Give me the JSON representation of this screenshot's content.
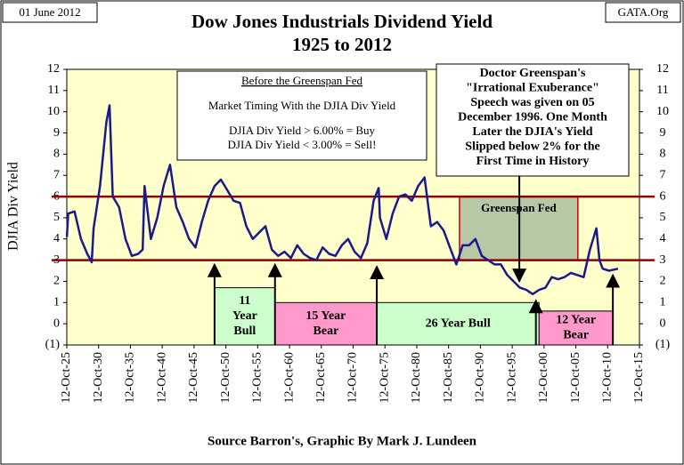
{
  "chart_data": {
    "type": "line",
    "title": "Dow Jones Industrials Dividend Yield",
    "subtitle": "1925 to 2012",
    "date": "01 June 2012",
    "source_tag": "GATA.Org",
    "y_label": "DJIA Div Yield",
    "footer": "Source Barron's, Graphic By Mark J. Lundeen",
    "xlim": [
      1925.78,
      2015.78
    ],
    "xticks": [
      {
        "value": 1925.78,
        "label": "12-Oct-25"
      },
      {
        "value": 1930.78,
        "label": "12-Oct-30"
      },
      {
        "value": 1935.78,
        "label": "12-Oct-35"
      },
      {
        "value": 1940.78,
        "label": "12-Oct-40"
      },
      {
        "value": 1945.78,
        "label": "12-Oct-45"
      },
      {
        "value": 1950.78,
        "label": "12-Oct-50"
      },
      {
        "value": 1955.78,
        "label": "12-Oct-55"
      },
      {
        "value": 1960.78,
        "label": "12-Oct-60"
      },
      {
        "value": 1965.78,
        "label": "12-Oct-65"
      },
      {
        "value": 1970.78,
        "label": "12-Oct-70"
      },
      {
        "value": 1975.78,
        "label": "12-Oct-75"
      },
      {
        "value": 1980.78,
        "label": "12-Oct-80"
      },
      {
        "value": 1985.78,
        "label": "12-Oct-85"
      },
      {
        "value": 1990.78,
        "label": "12-Oct-90"
      },
      {
        "value": 1995.78,
        "label": "12-Oct-95"
      },
      {
        "value": 2000.78,
        "label": "12-Oct-00"
      },
      {
        "value": 2005.78,
        "label": "12-Oct-05"
      },
      {
        "value": 2010.78,
        "label": "12-Oct-10"
      },
      {
        "value": 2015.78,
        "label": "12-Oct-15"
      }
    ],
    "ylim": [
      -1,
      12
    ],
    "yticks": [
      {
        "value": -1,
        "label": "(1)"
      },
      0,
      1,
      2,
      3,
      4,
      5,
      6,
      7,
      8,
      9,
      10,
      11,
      12
    ],
    "reference_lines": [
      6,
      3
    ],
    "reference_color": "#8b0000",
    "x": [
      1925.8,
      1926,
      1927,
      1928,
      1929,
      1929.7,
      1930,
      1931,
      1932,
      1932.5,
      1933,
      1934,
      1935,
      1936,
      1937,
      1937.7,
      1938,
      1939,
      1940,
      1941,
      1942,
      1943,
      1944,
      1945,
      1946,
      1947,
      1948,
      1949,
      1950,
      1951,
      1952,
      1953,
      1954,
      1955,
      1956,
      1957,
      1958,
      1959,
      1960,
      1961,
      1962,
      1963,
      1964,
      1965,
      1966,
      1967,
      1968,
      1969,
      1970,
      1971,
      1972,
      1973,
      1974,
      1974.8,
      1975,
      1976,
      1977,
      1978,
      1979,
      1980,
      1981,
      1982,
      1983,
      1984,
      1985,
      1986,
      1987,
      1988,
      1989,
      1990,
      1991,
      1992,
      1993,
      1994,
      1995,
      1996,
      1997,
      1998,
      1999,
      2000,
      2001,
      2002,
      2003,
      2004,
      2005,
      2006,
      2007,
      2008,
      2009,
      2009.5,
      2010,
      2011,
      2012.4
    ],
    "series": [
      {
        "name": "DJIA Div Yield",
        "color": "#1a1a8c",
        "values": [
          4.1,
          5.2,
          5.3,
          4.0,
          3.3,
          2.9,
          4.5,
          6.5,
          9.5,
          10.3,
          6.0,
          5.5,
          4.0,
          3.2,
          3.3,
          3.5,
          6.5,
          4.0,
          5.0,
          6.5,
          7.5,
          5.5,
          4.8,
          4.0,
          3.6,
          4.8,
          5.8,
          6.5,
          6.8,
          6.3,
          5.8,
          5.7,
          4.6,
          4.0,
          4.3,
          4.6,
          3.5,
          3.2,
          3.4,
          3.1,
          3.7,
          3.3,
          3.1,
          3.0,
          3.6,
          3.3,
          3.2,
          3.7,
          4.0,
          3.4,
          3.1,
          3.8,
          5.8,
          6.4,
          5.0,
          4.0,
          5.2,
          6.0,
          6.1,
          5.8,
          6.5,
          6.9,
          4.6,
          4.8,
          4.4,
          3.6,
          2.8,
          3.7,
          3.7,
          4.0,
          3.2,
          3.0,
          2.8,
          2.8,
          2.3,
          2.0,
          1.7,
          1.6,
          1.4,
          1.6,
          1.7,
          2.2,
          2.1,
          2.2,
          2.4,
          2.3,
          2.2,
          3.5,
          4.5,
          3.0,
          2.6,
          2.5,
          2.6
        ]
      }
    ],
    "note_left": [
      "Before the Greenspan Fed",
      "Market Timing With the DJIA Div Yield",
      "DJIA Div Yield > 6.00% = Buy",
      "DJIA Div Yield < 3.00% = Sell!"
    ],
    "note_right": [
      "Doctor Greenspan's",
      "\"Irrational Exuberance\"",
      "Speech was given on 05",
      "December 1996.  One Month",
      "Later the DJIA's Yield",
      "Slipped below 2% for the",
      "First Time in History"
    ],
    "regions": [
      {
        "lines": [
          "Greenspan Fed"
        ],
        "xrange": [
          1987.5,
          2006.1
        ],
        "yrange": [
          3,
          6
        ],
        "color": "#9fb59a"
      },
      {
        "lines": [
          "11",
          "Year",
          "Bull"
        ],
        "xrange": [
          1949,
          1958.5
        ],
        "yrange": [
          -1,
          1.7
        ],
        "color": "#ccffcc"
      },
      {
        "lines": [
          "15 Year",
          "Bear"
        ],
        "xrange": [
          1958.5,
          1974.5
        ],
        "yrange": [
          -1,
          1
        ],
        "color": "#ff99cc"
      },
      {
        "lines": [
          "26 Year Bull"
        ],
        "xrange": [
          1974.5,
          2000
        ],
        "yrange": [
          -1,
          1
        ],
        "color": "#ccffcc"
      },
      {
        "lines": [
          "12 Year",
          "Bear"
        ],
        "xrange": [
          2000,
          2011.6
        ],
        "yrange": [
          -1,
          0.6
        ],
        "color": "#ff99cc"
      }
    ],
    "arrows": [
      {
        "x": 1949,
        "y": [
          -1,
          2.7
        ]
      },
      {
        "x": 1958.5,
        "y": [
          -1,
          2.7
        ]
      },
      {
        "x": 1974.5,
        "y": [
          -1,
          2.6
        ]
      },
      {
        "x": 1999.5,
        "y": [
          -1,
          1
        ]
      },
      {
        "x": 2011.6,
        "y": [
          -1,
          2.2
        ]
      },
      {
        "x": 1996.9,
        "y": [
          8.8,
          2.1
        ]
      }
    ]
  }
}
